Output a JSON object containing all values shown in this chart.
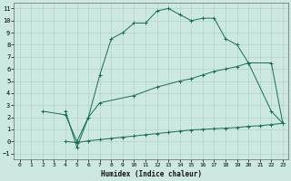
{
  "xlabel": "Humidex (Indice chaleur)",
  "bg_color": "#cce8e0",
  "grid_color": "#aad0c8",
  "line_color": "#1a6b5a",
  "xlim": [
    -0.5,
    23.5
  ],
  "ylim": [
    -1.5,
    11.5
  ],
  "xticks": [
    0,
    1,
    2,
    3,
    4,
    5,
    6,
    7,
    8,
    9,
    10,
    11,
    12,
    13,
    14,
    15,
    16,
    17,
    18,
    19,
    20,
    21,
    22,
    23
  ],
  "yticks": [
    -1,
    0,
    1,
    2,
    3,
    4,
    5,
    6,
    7,
    8,
    9,
    10,
    11
  ],
  "line1_x": [
    4,
    5,
    6,
    7,
    8,
    9,
    10,
    11,
    12,
    13,
    14,
    15,
    16,
    17,
    18,
    19,
    20,
    22,
    23
  ],
  "line1_y": [
    2.5,
    -0.5,
    2.0,
    5.5,
    8.5,
    9.0,
    9.8,
    9.8,
    10.8,
    11.0,
    10.5,
    10.0,
    10.2,
    10.2,
    8.5,
    8.0,
    6.5,
    2.5,
    1.5
  ],
  "line2_x": [
    2,
    4,
    5,
    6,
    7,
    10,
    12,
    14,
    15,
    16,
    17,
    18,
    19,
    20,
    22,
    23
  ],
  "line2_y": [
    2.5,
    2.2,
    0.0,
    2.0,
    3.2,
    3.8,
    4.5,
    5.0,
    5.2,
    5.5,
    5.8,
    6.0,
    6.2,
    6.5,
    6.5,
    1.5
  ],
  "line3_x": [
    4,
    5,
    6,
    7,
    8,
    9,
    10,
    11,
    12,
    13,
    14,
    15,
    16,
    17,
    18,
    19,
    20,
    21,
    22,
    23
  ],
  "line3_y": [
    0.0,
    -0.1,
    0.05,
    0.15,
    0.25,
    0.35,
    0.45,
    0.55,
    0.65,
    0.75,
    0.85,
    0.95,
    1.0,
    1.05,
    1.1,
    1.15,
    1.25,
    1.3,
    1.4,
    1.5
  ]
}
